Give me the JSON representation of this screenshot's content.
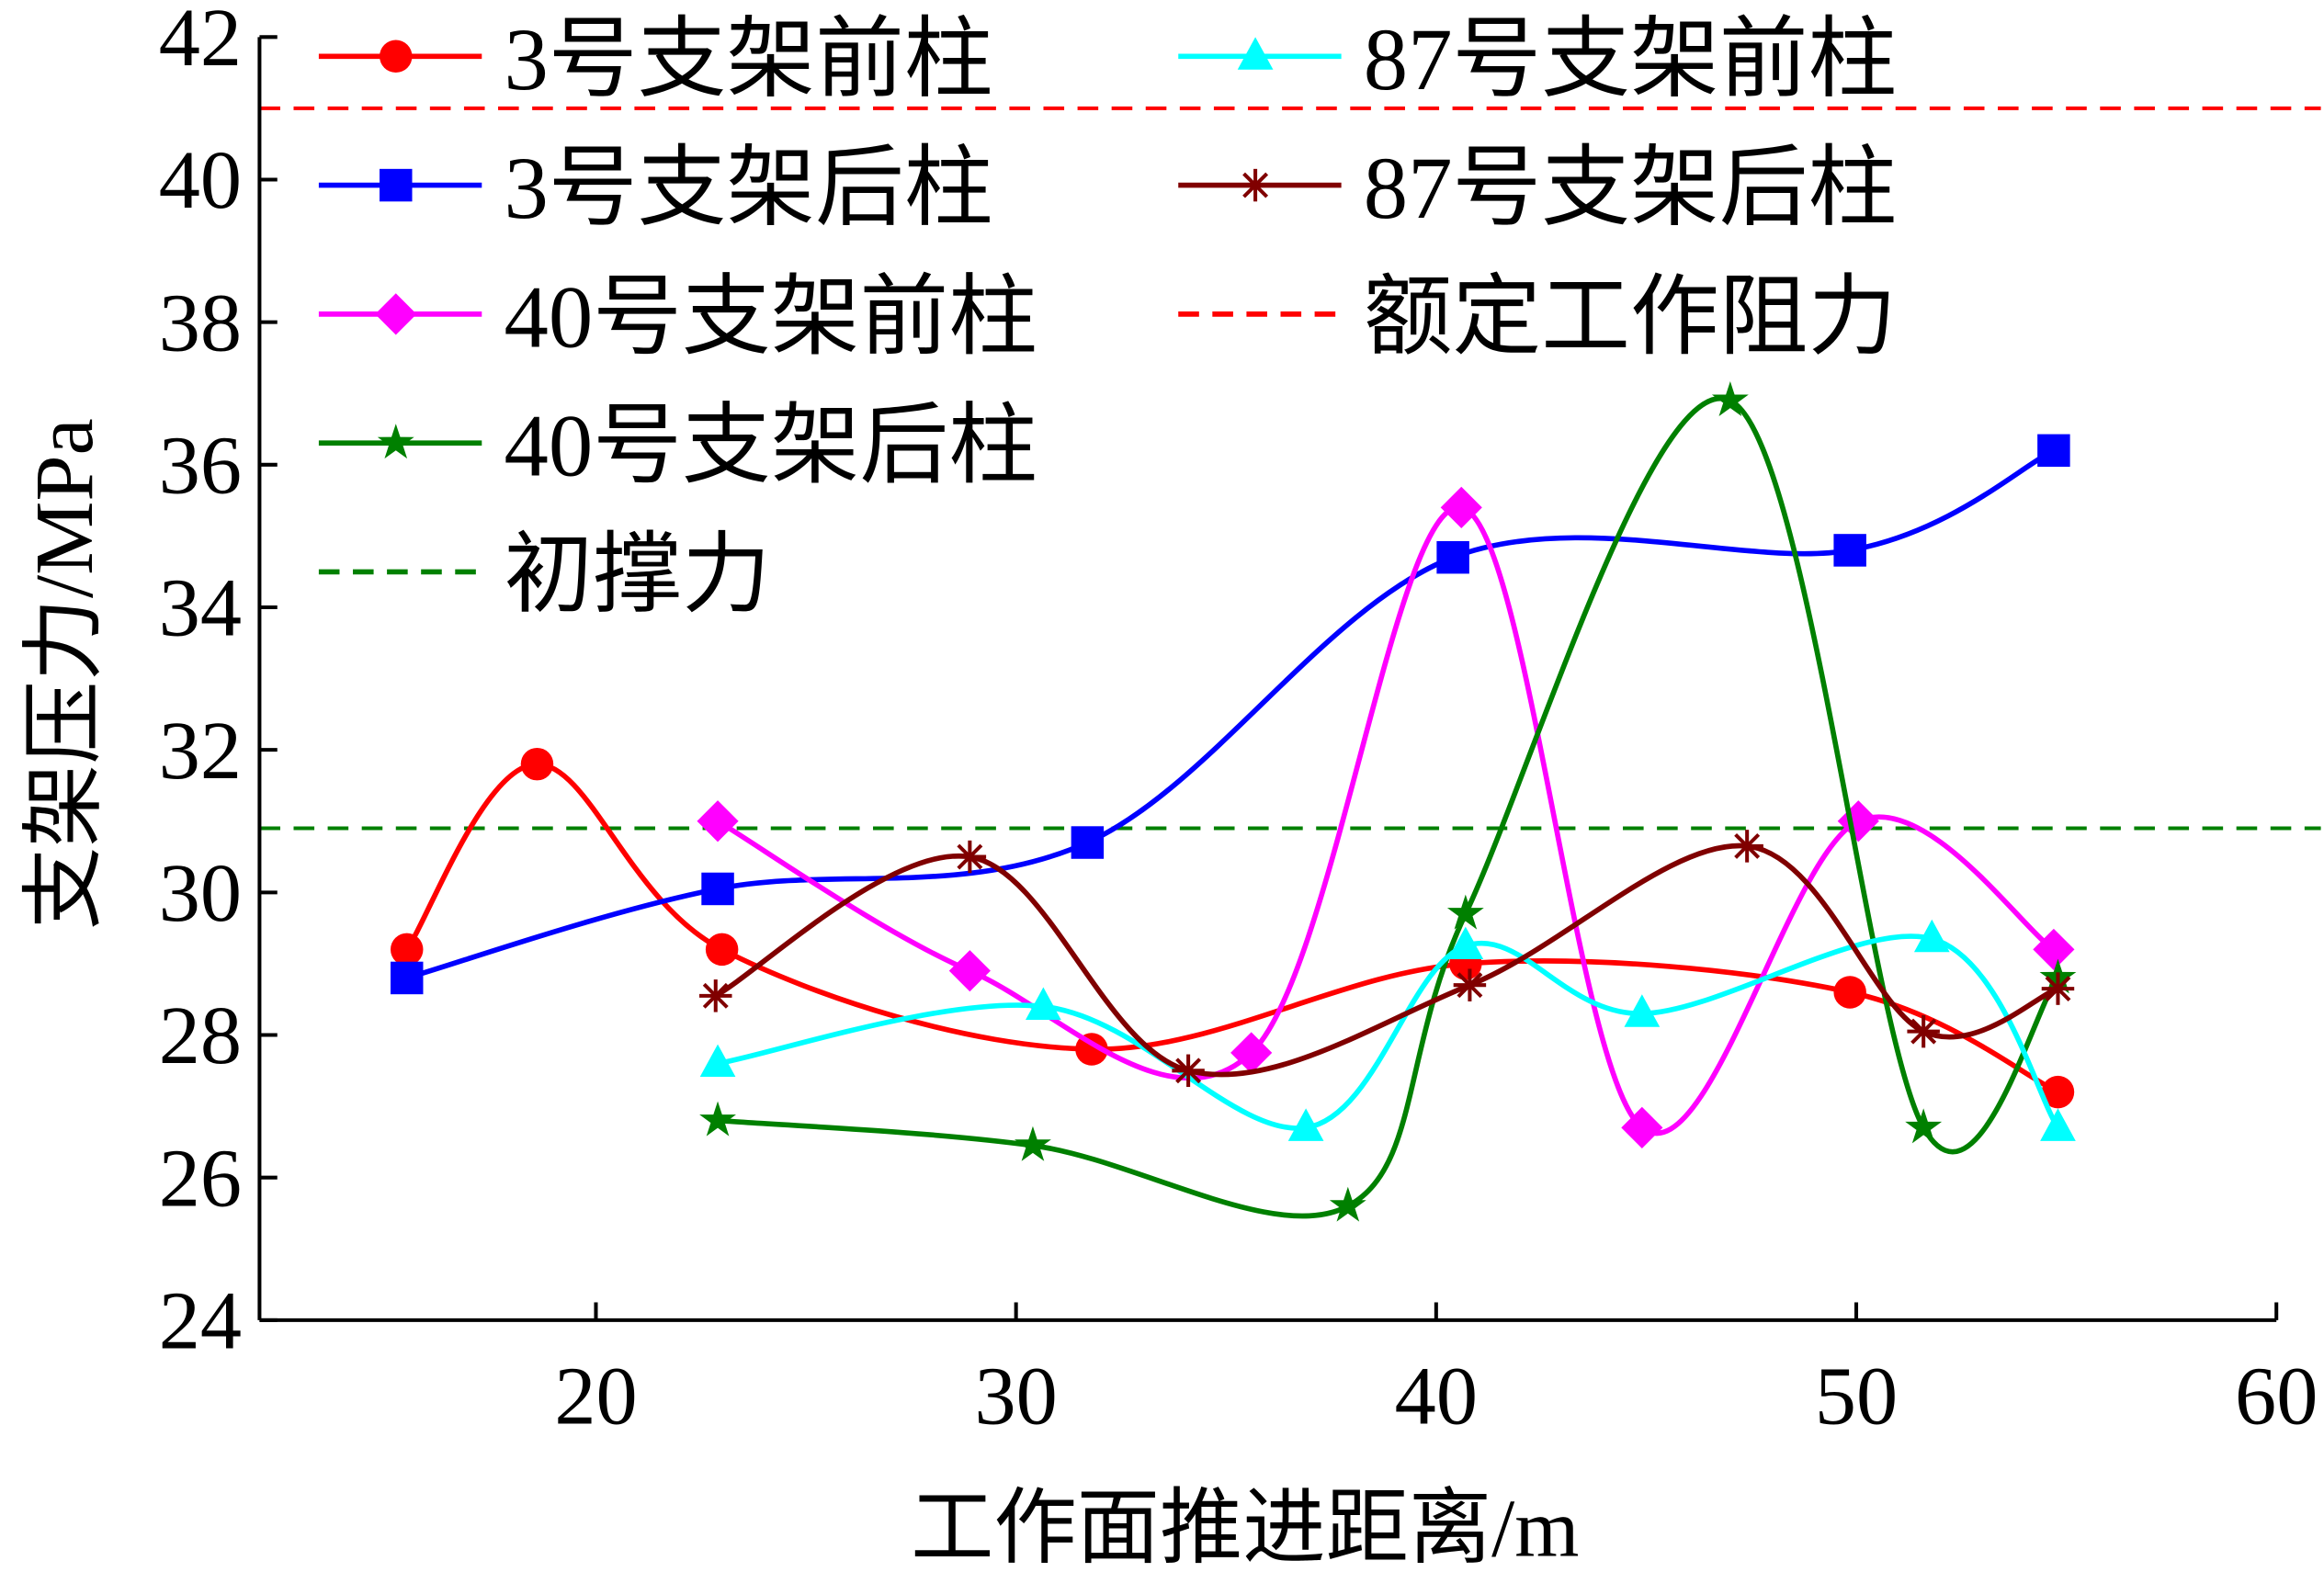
{
  "chart_data": {
    "type": "line",
    "xlabel": "工作面推进距离/m",
    "ylabel": "支架压力/MPa",
    "xlim": [
      12,
      60
    ],
    "ylim": [
      24,
      42
    ],
    "xticks": [
      20,
      30,
      40,
      50,
      60
    ],
    "yticks": [
      24,
      26,
      28,
      30,
      32,
      34,
      36,
      38,
      40,
      42
    ],
    "grid": false,
    "legend_position": "top-left",
    "smooth": true,
    "series": [
      {
        "name": "3号支架前柱",
        "color": "#ff0000",
        "marker": "circle",
        "x": [
          15.5,
          18.6,
          23.0,
          31.8,
          40.7,
          49.85,
          54.8
        ],
        "y": [
          29.2,
          31.8,
          29.2,
          27.8,
          29.0,
          28.6,
          27.2
        ]
      },
      {
        "name": "3号支架后柱",
        "color": "#0000ff",
        "marker": "square",
        "x": [
          15.5,
          22.9,
          31.7,
          40.4,
          49.85,
          54.7
        ],
        "y": [
          28.8,
          30.05,
          30.7,
          34.7,
          34.8,
          36.2
        ]
      },
      {
        "name": "40号支架前柱",
        "color": "#ff00ff",
        "marker": "diamond",
        "x": [
          22.9,
          28.9,
          35.6,
          40.6,
          44.9,
          50.05,
          54.7
        ],
        "y": [
          31.0,
          28.9,
          27.75,
          35.4,
          26.7,
          31.0,
          29.2
        ]
      },
      {
        "name": "40号支架后柱",
        "color": "#008000",
        "marker": "star",
        "x": [
          22.9,
          30.4,
          37.9,
          40.7,
          47.0,
          51.6,
          54.8
        ],
        "y": [
          26.8,
          26.45,
          25.6,
          29.7,
          36.9,
          26.7,
          28.8
        ]
      },
      {
        "name": "87号支架前柱",
        "color": "#00ffff",
        "marker": "triangle",
        "x": [
          22.9,
          30.65,
          36.9,
          40.7,
          44.9,
          51.8,
          54.8
        ],
        "y": [
          27.6,
          28.4,
          26.7,
          29.25,
          28.3,
          29.35,
          26.7
        ]
      },
      {
        "name": "87号支架后柱",
        "color": "#800000",
        "marker": "asterisk",
        "x": [
          22.85,
          28.9,
          34.1,
          40.8,
          47.4,
          51.6,
          54.8
        ],
        "y": [
          28.55,
          30.5,
          27.5,
          28.7,
          30.65,
          28.05,
          28.65
        ]
      }
    ],
    "reference_lines": [
      {
        "name": "额定工作阻力",
        "y": 41.0,
        "color": "#ff0000",
        "style": "dashed"
      },
      {
        "name": "初撑力",
        "y": 30.9,
        "color": "#008000",
        "style": "dashed"
      }
    ]
  }
}
